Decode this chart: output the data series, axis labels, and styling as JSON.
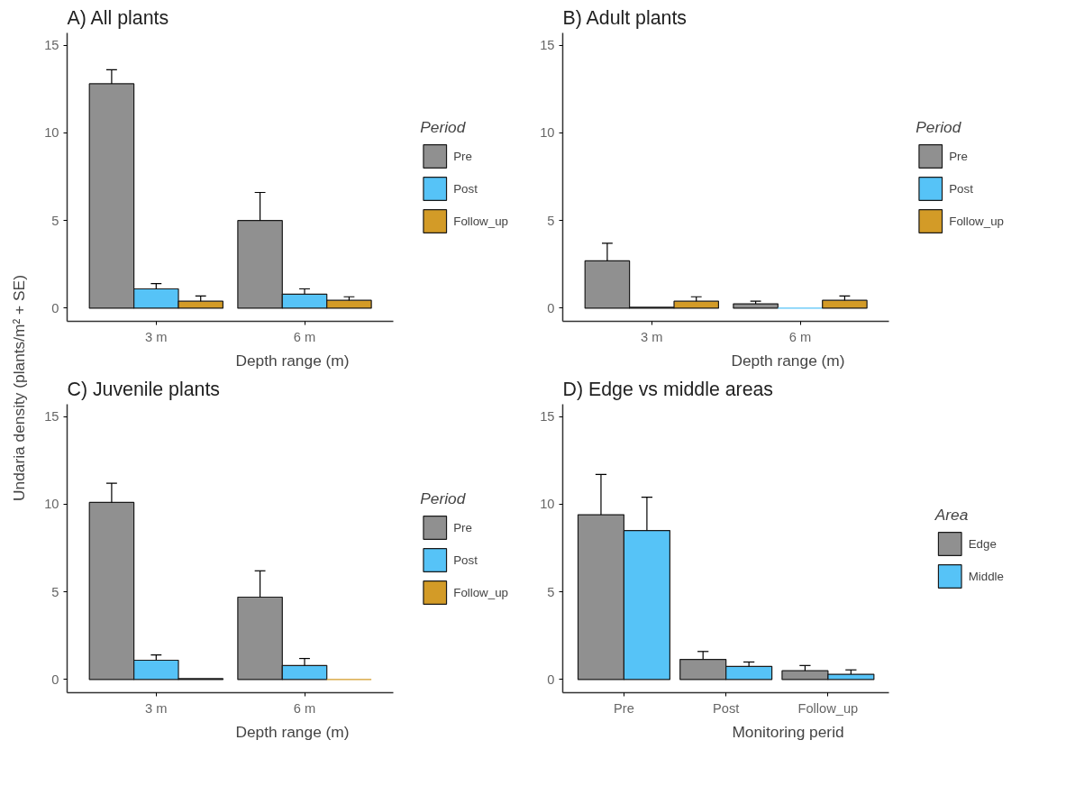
{
  "chart_data": [
    {
      "type": "bar",
      "title": "A) All plants",
      "xlabel": "Depth range (m)",
      "ylabel": "Undaria density (plants/m² + SE)",
      "legend_title": "Period",
      "legend": "right",
      "categories": [
        "3 m",
        "6 m"
      ],
      "ylim": [
        -0.75,
        15.7
      ],
      "yticks": [
        0,
        5,
        10,
        15
      ],
      "grid": false,
      "series": [
        {
          "name": "Pre",
          "color": "#909090",
          "values": [
            12.8,
            5.0
          ],
          "errors": [
            [
              12.8,
              13.6
            ],
            [
              5.0,
              6.6
            ]
          ]
        },
        {
          "name": "Post",
          "color": "#56c3f7",
          "values": [
            1.1,
            0.8
          ],
          "errors": [
            [
              1.1,
              1.4
            ],
            [
              0.8,
              1.1
            ]
          ]
        },
        {
          "name": "Follow_up",
          "color": "#d39b27",
          "values": [
            0.4,
            0.45
          ],
          "errors": [
            [
              0.4,
              0.7
            ],
            [
              0.45,
              0.65
            ]
          ]
        }
      ]
    },
    {
      "type": "bar",
      "title": "B) Adult plants",
      "xlabel": "Depth range (m)",
      "legend_title": "Period",
      "legend": "right",
      "categories": [
        "3 m",
        "6 m"
      ],
      "ylim": [
        -0.75,
        15.7
      ],
      "yticks": [
        0,
        5,
        10,
        15
      ],
      "grid": false,
      "series": [
        {
          "name": "Pre",
          "color": "#909090",
          "values": [
            2.7,
            0.25
          ],
          "errors": [
            [
              2.7,
              3.7
            ],
            [
              0.25,
              0.4
            ]
          ]
        },
        {
          "name": "Post",
          "color": "#56c3f7",
          "values": [
            0.05,
            0
          ],
          "errors": [
            null,
            null
          ]
        },
        {
          "name": "Follow_up",
          "color": "#d39b27",
          "values": [
            0.4,
            0.45
          ],
          "errors": [
            [
              0.4,
              0.65
            ],
            [
              0.45,
              0.7
            ]
          ]
        }
      ]
    },
    {
      "type": "bar",
      "title": "C) Juvenile plants",
      "xlabel": "Depth range (m)",
      "legend_title": "Period",
      "legend": "right",
      "categories": [
        "3 m",
        "6 m"
      ],
      "ylim": [
        -0.75,
        15.7
      ],
      "yticks": [
        0,
        5,
        10,
        15
      ],
      "grid": false,
      "series": [
        {
          "name": "Pre",
          "color": "#909090",
          "values": [
            10.1,
            4.7
          ],
          "errors": [
            [
              10.1,
              11.2
            ],
            [
              4.7,
              6.2
            ]
          ]
        },
        {
          "name": "Post",
          "color": "#56c3f7",
          "values": [
            1.1,
            0.8
          ],
          "errors": [
            [
              1.1,
              1.4
            ],
            [
              0.8,
              1.2
            ]
          ]
        },
        {
          "name": "Follow_up",
          "color": "#d39b27",
          "values": [
            0.05,
            0
          ],
          "errors": [
            null,
            null
          ]
        }
      ]
    },
    {
      "type": "bar",
      "title": "D) Edge vs middle areas",
      "xlabel": "Monitoring perid",
      "legend_title": "Area",
      "legend": "right",
      "categories": [
        "Pre",
        "Post",
        "Follow_up"
      ],
      "ylim": [
        -0.75,
        15.7
      ],
      "yticks": [
        0,
        5,
        10,
        15
      ],
      "grid": false,
      "series": [
        {
          "name": "Edge",
          "color": "#909090",
          "values": [
            9.4,
            1.15,
            0.5
          ],
          "errors": [
            [
              9.4,
              11.7
            ],
            [
              1.15,
              1.6
            ],
            [
              0.5,
              0.8
            ]
          ]
        },
        {
          "name": "Middle",
          "color": "#56c3f7",
          "values": [
            8.5,
            0.75,
            0.3
          ],
          "errors": [
            [
              8.5,
              10.4
            ],
            [
              0.75,
              1.0
            ],
            [
              0.3,
              0.55
            ]
          ]
        }
      ]
    }
  ]
}
